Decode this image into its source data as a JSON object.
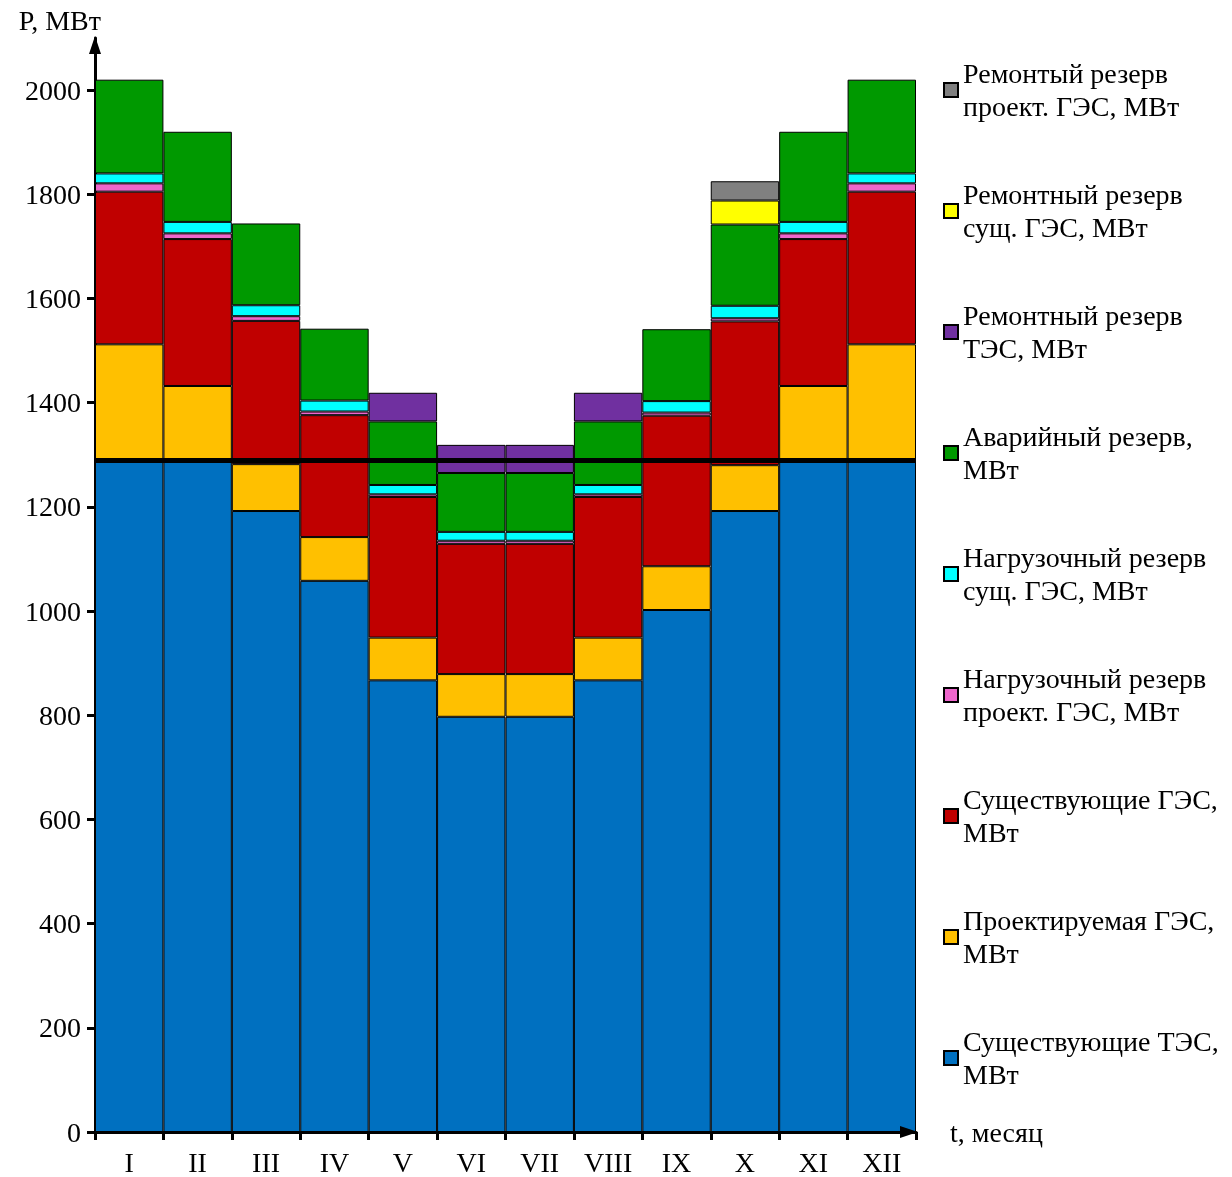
{
  "chart_data": {
    "type": "bar",
    "stacked": true,
    "categories": [
      "I",
      "II",
      "III",
      "IV",
      "V",
      "VI",
      "VII",
      "VIII",
      "IX",
      "X",
      "XI",
      "XII"
    ],
    "series": [
      {
        "name": "Существующие ТЭС, МВт",
        "color": "#0070c0",
        "values": [
          1290,
          1290,
          1192,
          1058,
          867,
          797,
          797,
          867,
          1002,
          1192,
          1290,
          1290
        ]
      },
      {
        "name": "Проектируемая ГЭС, МВт",
        "color": "#ffc000",
        "values": [
          222,
          142,
          90,
          84,
          82,
          82,
          82,
          82,
          84,
          88,
          142,
          222
        ]
      },
      {
        "name": "Существующие ГЭС, МВт",
        "color": "#c00000",
        "values": [
          293,
          282,
          275,
          234,
          270,
          250,
          250,
          270,
          289,
          276,
          282,
          293
        ]
      },
      {
        "name": "Нагрузочный резерв проект. ГЭС, МВт",
        "color": "#ee66cc",
        "values": [
          16,
          11,
          9,
          7,
          5,
          6,
          6,
          5,
          6,
          6,
          11,
          16
        ]
      },
      {
        "name": "Нагрузочный резерв сущ. ГЭС, МВт",
        "color": "#00ffff",
        "values": [
          19,
          22,
          21,
          21,
          18,
          17,
          17,
          18,
          22,
          24,
          22,
          19
        ]
      },
      {
        "name": "Аварийный резерв, МВт",
        "color": "#009900",
        "values": [
          180,
          173,
          157,
          138,
          122,
          113,
          113,
          122,
          138,
          156,
          173,
          180
        ]
      },
      {
        "name": "Ремонтный резерв ТЭС, МВт",
        "color": "#7030a0",
        "values": [
          null,
          null,
          null,
          null,
          55,
          54,
          54,
          55,
          null,
          null,
          null,
          null
        ]
      },
      {
        "name": "Ремонтный резерв сущ. ГЭС, МВт",
        "color": "#ffff00",
        "values": [
          null,
          null,
          null,
          null,
          null,
          null,
          null,
          null,
          null,
          46,
          null,
          null
        ]
      },
      {
        "name": "Ремонтый резерв проект. ГЭС, МВт",
        "color": "#808080",
        "values": [
          null,
          null,
          null,
          null,
          null,
          null,
          null,
          null,
          null,
          37,
          null,
          null
        ]
      }
    ],
    "ylim": [
      0,
      2100
    ],
    "yticks": [
      0,
      200,
      400,
      600,
      800,
      1000,
      1200,
      1400,
      1600,
      1800,
      2000
    ],
    "ylabel": "P, МВт",
    "xlabel": "t, месяц",
    "ref_lines": [
      {
        "axis": "y",
        "value": 1290,
        "color": "#000000"
      }
    ],
    "legend": "right"
  }
}
